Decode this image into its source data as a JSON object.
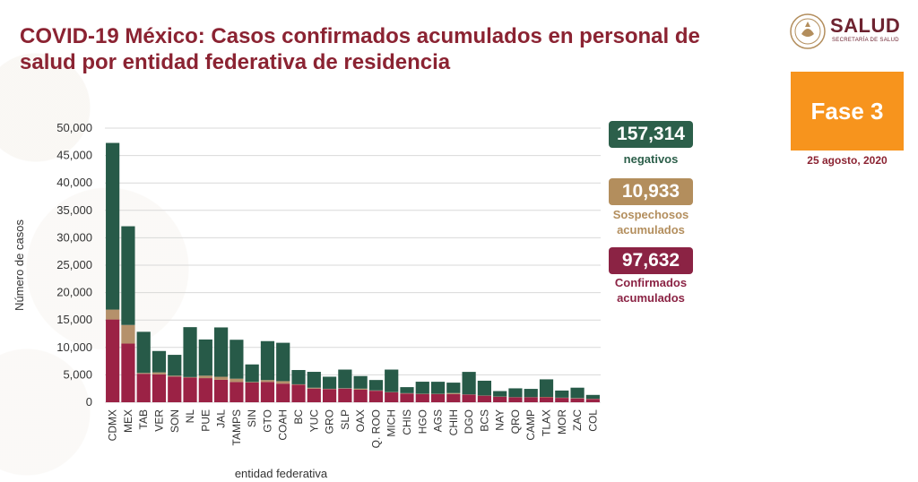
{
  "header": {
    "title": "COVID-19 México: Casos confirmados acumulados en personal de salud por entidad federativa de residencia",
    "logo_text": "SALUD",
    "logo_subtext": "SECRETARÍA DE SALUD"
  },
  "phase": {
    "label": "Fase 3",
    "date": "25 agosto, 2020"
  },
  "summary": {
    "negativos": {
      "value": "157,314",
      "label": "negativos",
      "color": "#2c5f4a"
    },
    "sospechosos": {
      "value": "10,933",
      "label": "Sospechosos acumulados",
      "color": "#b38e5d"
    },
    "confirmados": {
      "value": "97,632",
      "label": "Confirmados acumulados",
      "color": "#8b2344"
    }
  },
  "chart_data": {
    "type": "bar",
    "stacked": true,
    "title": "COVID-19 México: Casos confirmados acumulados en personal de salud por entidad federativa de residencia",
    "xlabel": "entidad federativa",
    "ylabel": "Número de casos",
    "ylim": [
      0,
      50000
    ],
    "yticks": [
      0,
      5000,
      10000,
      15000,
      20000,
      25000,
      30000,
      35000,
      40000,
      45000,
      50000
    ],
    "ytick_labels": [
      "0",
      "5,000",
      "10,000",
      "15,000",
      "20,000",
      "25,000",
      "30,000",
      "35,000",
      "40,000",
      "45,000",
      "50,000"
    ],
    "categories": [
      "CDMX",
      "MEX",
      "TAB",
      "VER",
      "SON",
      "NL",
      "PUE",
      "JAL",
      "TAMPS",
      "SIN",
      "GTO",
      "COAH",
      "BC",
      "YUC",
      "GRO",
      "SLP",
      "OAX",
      "Q. ROO",
      "MICH",
      "CHIS",
      "HGO",
      "AGS",
      "CHIH",
      "DGO",
      "BCS",
      "NAY",
      "QRO",
      "CAMP",
      "TLAX",
      "MOR",
      "ZAC",
      "COL"
    ],
    "series": [
      {
        "name": "Confirmados",
        "color": "#9b2245",
        "values": [
          15100,
          10700,
          5200,
          5100,
          4700,
          4500,
          4400,
          4100,
          3700,
          3600,
          3700,
          3400,
          3200,
          2500,
          2400,
          2500,
          2300,
          2100,
          1800,
          1600,
          1500,
          1500,
          1500,
          1400,
          1200,
          1000,
          900,
          900,
          900,
          800,
          700,
          600
        ]
      },
      {
        "name": "Sospechosos",
        "color": "#b5916b",
        "values": [
          1800,
          3400,
          150,
          350,
          150,
          100,
          450,
          550,
          600,
          100,
          350,
          450,
          80,
          150,
          60,
          60,
          180,
          60,
          60,
          60,
          50,
          40,
          180,
          40,
          30,
          40,
          40,
          40,
          80,
          40,
          60,
          40
        ]
      },
      {
        "name": "Negativos",
        "color": "#275a48",
        "values": [
          30400,
          18000,
          7500,
          3900,
          3800,
          9100,
          6600,
          9000,
          7100,
          3200,
          7100,
          7000,
          2600,
          2900,
          2200,
          3400,
          2300,
          1900,
          4100,
          1100,
          2200,
          2200,
          1900,
          4100,
          2700,
          1000,
          1600,
          1500,
          3200,
          1300,
          1900,
          700
        ]
      }
    ]
  }
}
